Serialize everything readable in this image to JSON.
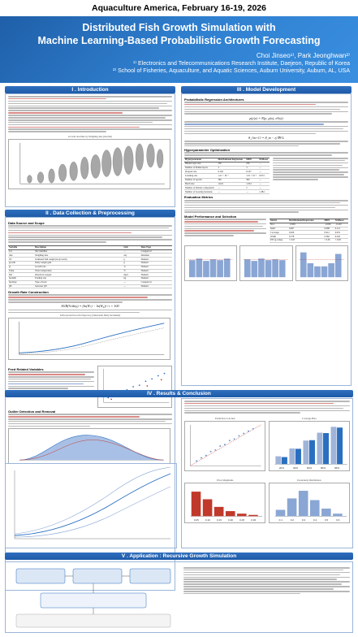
{
  "conference": "Aquaculture America, February 16-19, 2026",
  "title": {
    "line1": "Distributed Fish Growth Simulation with",
    "line2": "Machine Learning-Based Probabilistic Growth Forecasting"
  },
  "authors": {
    "names": "Choi Jinseo¹⁾, Park Jeonghwan²⁾",
    "affil1": "¹⁾ Electronics and Telecommunications Research Institute, Daejeon, Republic of Korea",
    "affil2": "²⁾ School of Fisheries, Aquaculture, and Aquatic Sciences, Auburn University, Auburn, AL, USA"
  },
  "sections": {
    "intro": "I . Introduction",
    "data": "II . Data Collection & Preprocessing",
    "model": "III . Model Development",
    "results": "IV . Results & Conclusion",
    "application": "V . Application : Recursive Growth Simulation"
  },
  "subheads": {
    "data_sources": "Data Source and Scope",
    "growth_rate": "Growth Rate Construction",
    "feed_vars": "Feed Related Variables",
    "outlier": "Outlier Detection and Removal",
    "prob_regression": "Probabilistic Regression Architectures",
    "hyper": "Hyperparameter Optimization",
    "eval": "Evaluation Metrics",
    "perf": "Model Performance and Selection"
  },
  "figures": {
    "violin_caption": "Growth rate/time by Weighing date (site/bin)",
    "growth_caption": "Self-reported Growth Trajectory (Sinusoidal Daily Increment)",
    "predictions_title": "Prediction vs Actual",
    "coverage_title": "Coverage Bars",
    "error_title": "Error Magnitude",
    "uncertainty_title": "Uncertainty Distribution"
  },
  "equations": {
    "sgr": "SGR(%/day) = (ln(Wₜ) − ln(W₀)) / t × 100",
    "gaussian": "p(y|x) = N(y; μ(x), σ²(x))",
    "ngboost": "θ_{m+1} = θ_m − η ∇θ L"
  },
  "tables": {
    "hyper_headers": [
      "Hyperparameter",
      "Distributional Regression",
      "MDN",
      "NGBoost"
    ],
    "hyper_rows": [
      [
        "Hidden layer size",
        "256",
        "256",
        "—"
      ],
      [
        "Number of hidden layers",
        "3",
        "3",
        "—"
      ],
      [
        "Dropout rate",
        "0.194",
        "0.197",
        "—"
      ],
      [
        "Learning rate",
        "1.21 × 10⁻³",
        "1.01 × 10⁻³",
        "0.074"
      ],
      [
        "Number of epochs",
        "300",
        "300",
        "—"
      ],
      [
        "Batch size",
        "1,024",
        "1,024",
        "—"
      ],
      [
        "Number of mixture components",
        "—",
        "5",
        "—"
      ],
      [
        "Number of boosting iterations",
        "—",
        "—",
        "1,384"
      ]
    ],
    "vars_headers": [
      "Variable",
      "Description",
      "Unit",
      "Data Type"
    ],
    "vars_rows": [
      [
        "Lot",
        "Site identifier",
        "—",
        "Categorical"
      ],
      [
        "date",
        "Weighing date",
        "day",
        "Datetime"
      ],
      [
        "Wt",
        "Estimated fish weight (body batch)",
        "g",
        "Numeric"
      ],
      [
        "growth",
        "Daily weight gain",
        "g",
        "Numeric"
      ],
      [
        "gr",
        "Growth rate",
        "%",
        "Numeric"
      ],
      [
        "Temp",
        "Water temperature",
        "°C",
        "Numeric"
      ],
      [
        "DO",
        "Dissolved oxygen",
        "mg/L",
        "Numeric"
      ],
      [
        "feedamt",
        "Feeding rate",
        "kg",
        "Numeric"
      ],
      [
        "feedtype",
        "Type of feed",
        "—",
        "Categorical"
      ],
      [
        "pH",
        "Seawater pH",
        "—",
        "Numeric"
      ]
    ],
    "metrics_headers": [
      "Metric",
      "Distributional Regression",
      "MDN",
      "NGBoost"
    ],
    "metrics_rows": [
      [
        "NLL",
        "−0.963",
        "−0.936",
        "−0.410"
      ],
      [
        "MAE",
        "0.087",
        "0.088",
        "0.121"
      ],
      [
        "Coverage",
        "0.920",
        "0.912",
        "0.955"
      ],
      [
        "Width",
        "0.378",
        "0.382",
        "0.592"
      ],
      [
        "PIT (p-value)",
        "> 0.05",
        "> 0.05",
        "< 0.05"
      ]
    ]
  },
  "chart_data": [
    {
      "type": "bar",
      "title": "Coverage Bars",
      "categories": [
        "20%",
        "40%",
        "60%",
        "80%",
        "95%"
      ],
      "series": [
        {
          "name": "Target",
          "values": [
            20,
            40,
            60,
            80,
            95
          ]
        },
        {
          "values": [
            18,
            39,
            61,
            79,
            93
          ]
        }
      ],
      "ylim": [
        0,
        100
      ]
    },
    {
      "type": "bar",
      "title": "Uncertainty Distribution",
      "categories": [
        "0.1",
        "0.2",
        "0.3",
        "0.4",
        "0.5",
        "0.6"
      ],
      "values": [
        15,
        42,
        60,
        38,
        18,
        6
      ],
      "ylim": [
        0,
        70
      ]
    },
    {
      "type": "bar",
      "title": "Error Magnitude",
      "categories": [
        "0.05",
        "0.10",
        "0.15",
        "0.20",
        "0.25",
        "0.30"
      ],
      "values": [
        58,
        40,
        22,
        12,
        6,
        3
      ],
      "ylim": [
        0,
        70
      ]
    }
  ],
  "colors": {
    "header": "#2a6fbf",
    "section": "#1e5aa8",
    "highlight": "#c0392b"
  }
}
